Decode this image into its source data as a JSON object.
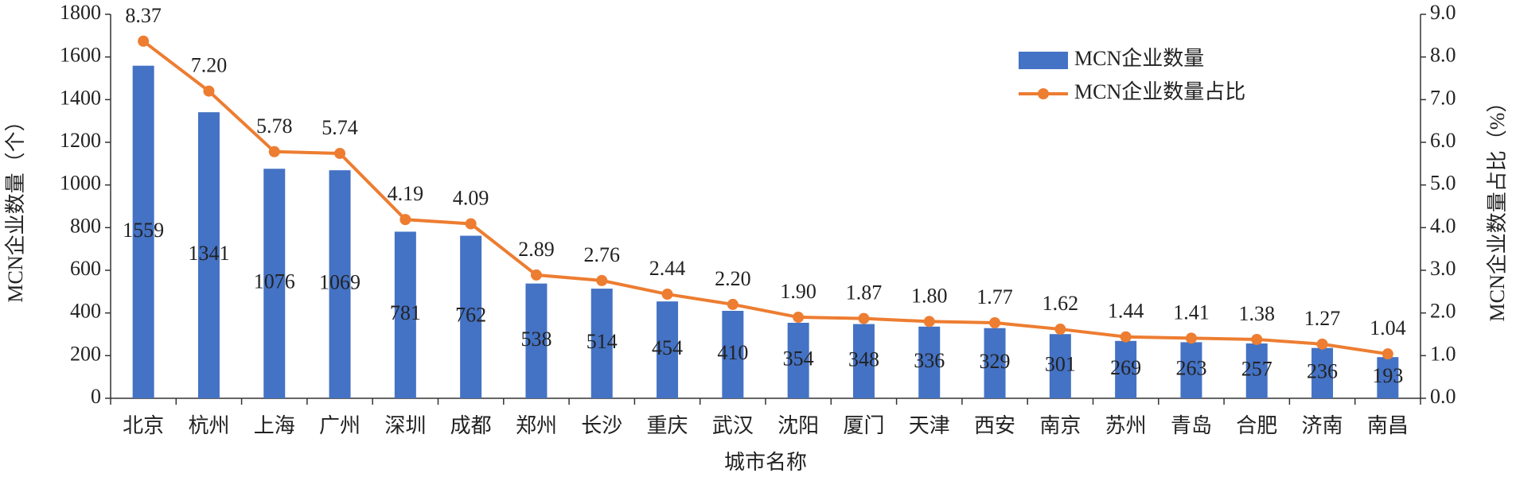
{
  "chart_data": {
    "type": "bar",
    "x_label": "城市名称",
    "y_label": "MCN企业数量（个）",
    "y2_label": "MCN企业数量占比（%）",
    "categories": [
      "北京",
      "杭州",
      "上海",
      "广州",
      "深圳",
      "成都",
      "郑州",
      "长沙",
      "重庆",
      "武汉",
      "沈阳",
      "厦门",
      "天津",
      "西安",
      "南京",
      "苏州",
      "青岛",
      "合肥",
      "济南",
      "南昌"
    ],
    "series": [
      {
        "name": "MCN企业数量",
        "type": "bar",
        "color": "#4472c4",
        "values": [
          1559,
          1341,
          1076,
          1069,
          781,
          762,
          538,
          514,
          454,
          410,
          354,
          348,
          336,
          329,
          301,
          269,
          263,
          257,
          236,
          193
        ]
      },
      {
        "name": "MCN企业数量占比",
        "type": "line",
        "axis": "y2",
        "color": "#ed7d31",
        "values": [
          8.37,
          7.2,
          5.78,
          5.74,
          4.19,
          4.09,
          2.89,
          2.76,
          2.44,
          2.2,
          1.9,
          1.87,
          1.8,
          1.77,
          1.62,
          1.44,
          1.41,
          1.38,
          1.27,
          1.04
        ],
        "value_labels": [
          "8.37",
          "7.20",
          "5.78",
          "5.74",
          "4.19",
          "4.09",
          "2.89",
          "2.76",
          "2.44",
          "2.20",
          "1.90",
          "1.87",
          "1.80",
          "1.77",
          "1.62",
          "1.44",
          "1.41",
          "1.38",
          "1.27",
          "1.04"
        ]
      }
    ],
    "ylim": [
      0,
      1800
    ],
    "yticks": [
      0,
      200,
      400,
      600,
      800,
      1000,
      1200,
      1400,
      1600,
      1800
    ],
    "y2lim": [
      0,
      9
    ],
    "y2ticks": [
      {
        "value": 0,
        "label": "0.0"
      },
      {
        "value": 1,
        "label": "1.0"
      },
      {
        "value": 2,
        "label": "2.0"
      },
      {
        "value": 3,
        "label": "3.0"
      },
      {
        "value": 4,
        "label": "4.0"
      },
      {
        "value": 5,
        "label": "5.0"
      },
      {
        "value": 6,
        "label": "6.0"
      },
      {
        "value": 7,
        "label": "7.0"
      },
      {
        "value": 8,
        "label": "8.0"
      },
      {
        "value": 9,
        "label": "9.0"
      }
    ],
    "grid": false,
    "legend": "upper right"
  }
}
